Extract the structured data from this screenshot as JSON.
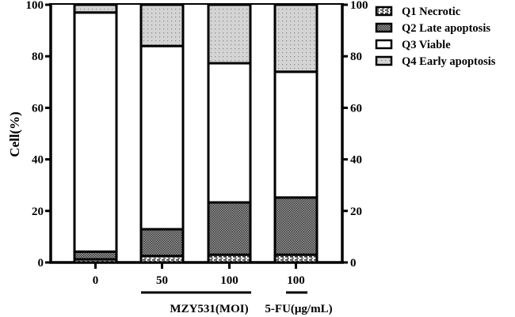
{
  "chart_data": {
    "type": "bar",
    "stacked": true,
    "title": "",
    "xlabel": "",
    "ylabel": "Cell(%)",
    "ylim": [
      0,
      100
    ],
    "yticks": [
      0,
      20,
      40,
      60,
      80,
      100
    ],
    "right_axis_ticks": [
      0,
      20,
      40,
      60,
      80,
      100
    ],
    "categories": [
      "0",
      "50",
      "100",
      "100"
    ],
    "group_labels": [
      {
        "label": "MZY531(MOI)",
        "covers": [
          "50",
          "100"
        ]
      },
      {
        "label": "5-FU(μg/mL)",
        "covers": [
          "100"
        ]
      }
    ],
    "series": [
      {
        "name": "Q1 Necrotic",
        "pattern": "dashed-hatch",
        "values": [
          1.2,
          2.5,
          3.0,
          3.0
        ]
      },
      {
        "name": "Q2 Late apoptosis",
        "pattern": "dark-checker",
        "values": [
          3.0,
          10.4,
          20.3,
          22.2
        ]
      },
      {
        "name": "Q3 Viable",
        "pattern": "white",
        "values": [
          92.8,
          71.1,
          54.0,
          48.8
        ]
      },
      {
        "name": "Q4 Early apoptosis",
        "pattern": "light-dotted",
        "values": [
          3.0,
          16.0,
          22.7,
          26.0
        ]
      }
    ],
    "legend_position": "top-right",
    "grid": false
  },
  "axis": {
    "ylabel": "Cell(%)",
    "yticks": [
      "0",
      "20",
      "40",
      "60",
      "80",
      "100"
    ],
    "xticks": [
      "0",
      "50",
      "100",
      "100"
    ],
    "group1": "MZY531(MOI)",
    "group2": "5-FU(μg/mL)"
  },
  "legend": {
    "items": [
      "Q1 Necrotic",
      "Q2 Late apoptosis",
      "Q3 Viable",
      "Q4 Early apoptosis"
    ]
  }
}
